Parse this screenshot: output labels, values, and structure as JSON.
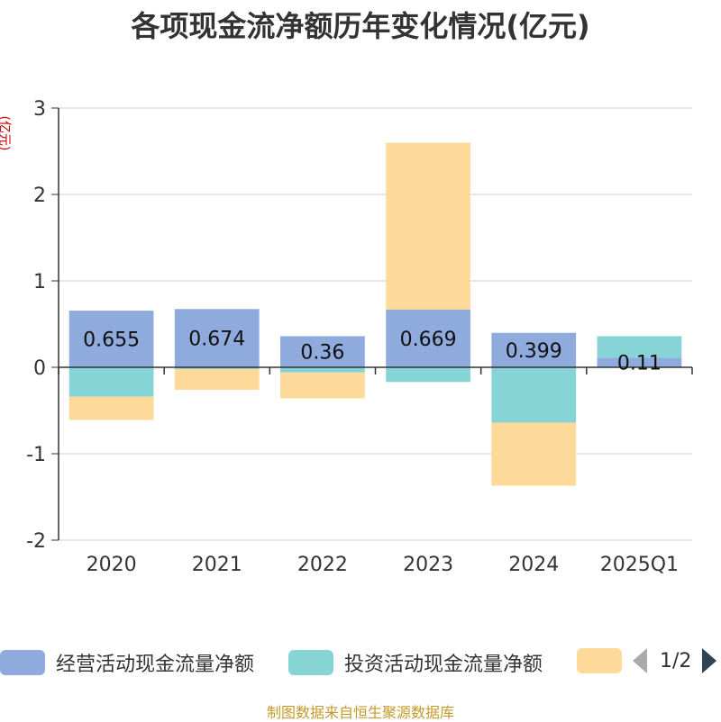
{
  "title": "各项现金流净额历年变化情况(亿元)",
  "unit": "(亿元)",
  "source": "制图数据来自恒生聚源数据库",
  "legend": {
    "items": [
      {
        "name": "经营活动现金流量净额",
        "color": "#8faadc"
      },
      {
        "name": "投资活动现金流量净额",
        "color": "#87d4d7"
      },
      {
        "name": "",
        "color": "#fdd99a"
      }
    ],
    "page": "1/2"
  },
  "chart_data": {
    "type": "bar",
    "stacked": true,
    "categories": [
      "2020",
      "2021",
      "2022",
      "2023",
      "2024",
      "2025Q1"
    ],
    "ylim": [
      -2,
      3
    ],
    "yticks": [
      3,
      2,
      1,
      0,
      -1,
      -2
    ],
    "series": [
      {
        "name": "经营活动现金流量净额",
        "color": "#8faadc",
        "values": [
          0.655,
          0.674,
          0.36,
          0.669,
          0.399,
          0.11
        ]
      },
      {
        "name": "投资活动现金流量净额",
        "color": "#87d4d7",
        "values": [
          -0.34,
          -0.02,
          -0.06,
          -0.17,
          -0.64,
          0.25
        ]
      },
      {
        "name": "",
        "color": "#fdd99a",
        "values": [
          -0.27,
          -0.24,
          -0.3,
          1.93,
          -0.73,
          0
        ]
      }
    ],
    "data_labels": [
      "0.655",
      "0.674",
      "0.36",
      "0.669",
      "0.399",
      "0.11"
    ],
    "grid": true
  }
}
